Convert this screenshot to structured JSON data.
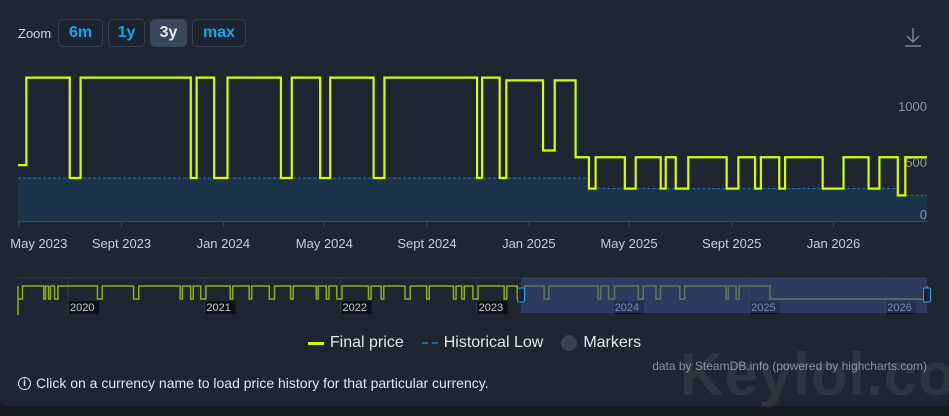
{
  "toolbar": {
    "zoom_label": "Zoom",
    "buttons": [
      {
        "label": "6m",
        "active": false
      },
      {
        "label": "1y",
        "active": false
      },
      {
        "label": "3y",
        "active": true
      },
      {
        "label": "max",
        "active": false
      }
    ],
    "download_icon": "download-icon"
  },
  "colors": {
    "final_price": "#d4ff00",
    "historical_low": "#1a7ac0",
    "low_fill": "#1b3449",
    "navigator_mask": "#3b4a86"
  },
  "chart_data": {
    "type": "line",
    "step": true,
    "x_ticks": [
      "May 2023",
      "Sept 2023",
      "Jan 2024",
      "May 2024",
      "Sept 2024",
      "Jan 2025",
      "May 2025",
      "Sept 2025",
      "Jan 2026"
    ],
    "x_tick_dates": [
      "2023-05-01",
      "2023-09-01",
      "2024-01-01",
      "2024-05-01",
      "2024-09-01",
      "2025-01-01",
      "2025-05-01",
      "2025-09-01",
      "2026-01-01"
    ],
    "xlim": [
      "2023-04-30",
      "2026-04-23"
    ],
    "y_ticks": [
      0,
      500,
      1000
    ],
    "ylim": [
      0,
      1330
    ],
    "grid": false,
    "legend_position": "bottom",
    "series": [
      {
        "name": "Final price",
        "points": [
          [
            "2023-04-30",
            499
          ],
          [
            "2023-05-10",
            1280
          ],
          [
            "2023-07-01",
            384
          ],
          [
            "2023-07-14",
            1280
          ],
          [
            "2023-11-23",
            384
          ],
          [
            "2023-11-30",
            1280
          ],
          [
            "2023-12-21",
            384
          ],
          [
            "2024-01-06",
            1280
          ],
          [
            "2024-03-10",
            384
          ],
          [
            "2024-03-23",
            1280
          ],
          [
            "2024-04-26",
            384
          ],
          [
            "2024-05-08",
            1280
          ],
          [
            "2024-06-29",
            384
          ],
          [
            "2024-07-12",
            1280
          ],
          [
            "2024-10-31",
            384
          ],
          [
            "2024-11-06",
            1280
          ],
          [
            "2024-11-27",
            384
          ],
          [
            "2024-12-05",
            1255
          ],
          [
            "2025-01-18",
            629
          ],
          [
            "2025-02-01",
            1255
          ],
          [
            "2025-02-26",
            569
          ],
          [
            "2025-03-14",
            289
          ],
          [
            "2025-03-22",
            569
          ],
          [
            "2025-04-26",
            289
          ],
          [
            "2025-05-09",
            569
          ],
          [
            "2025-06-08",
            289
          ],
          [
            "2025-06-14",
            569
          ],
          [
            "2025-06-26",
            289
          ],
          [
            "2025-07-11",
            569
          ],
          [
            "2025-08-26",
            289
          ],
          [
            "2025-09-09",
            569
          ],
          [
            "2025-09-29",
            289
          ],
          [
            "2025-10-06",
            569
          ],
          [
            "2025-10-28",
            289
          ],
          [
            "2025-11-04",
            569
          ],
          [
            "2025-12-19",
            289
          ],
          [
            "2026-01-13",
            569
          ],
          [
            "2026-02-12",
            289
          ],
          [
            "2026-02-25",
            569
          ],
          [
            "2026-03-19",
            229
          ],
          [
            "2026-03-28",
            569
          ],
          [
            "2026-04-23",
            569
          ]
        ]
      },
      {
        "name": "Historical Low",
        "points": [
          [
            "2023-04-30",
            384
          ],
          [
            "2025-03-14",
            289
          ],
          [
            "2026-03-19",
            229
          ],
          [
            "2026-04-23",
            229
          ]
        ]
      }
    ],
    "navigator": {
      "year_labels": [
        "2020",
        "2021",
        "2022",
        "2023",
        "2024",
        "2025",
        "2026"
      ],
      "xlim": [
        "2019-08-20",
        "2026-04-23"
      ],
      "selected_range": [
        "2023-04-30",
        "2026-04-23"
      ],
      "sale_periods": [
        [
          "2019-08-20",
          "2019-09-01"
        ],
        [
          "2019-10-28",
          "2019-11-02"
        ],
        [
          "2019-11-10",
          "2019-11-15"
        ],
        [
          "2019-11-26",
          "2019-12-05"
        ],
        [
          "2020-03-20",
          "2020-04-02"
        ],
        [
          "2020-06-25",
          "2020-07-09"
        ],
        [
          "2020-10-28",
          "2020-11-03"
        ],
        [
          "2020-11-25",
          "2020-12-02"
        ],
        [
          "2020-12-22",
          "2021-01-05"
        ],
        [
          "2021-03-11",
          "2021-03-18"
        ],
        [
          "2021-05-01",
          "2021-05-08"
        ],
        [
          "2021-06-24",
          "2021-07-08"
        ],
        [
          "2021-08-20",
          "2021-08-27"
        ],
        [
          "2021-10-28",
          "2021-11-02"
        ],
        [
          "2021-11-24",
          "2021-12-01"
        ],
        [
          "2021-12-22",
          "2022-01-05"
        ],
        [
          "2022-03-17",
          "2022-03-24"
        ],
        [
          "2022-04-20",
          "2022-04-27"
        ],
        [
          "2022-06-23",
          "2022-07-07"
        ],
        [
          "2022-08-20",
          "2022-08-27"
        ],
        [
          "2022-10-31",
          "2022-11-07"
        ],
        [
          "2022-11-22",
          "2022-11-29"
        ],
        [
          "2022-12-22",
          "2023-01-05"
        ],
        [
          "2023-03-16",
          "2023-03-23"
        ],
        [
          "2023-04-20",
          "2023-05-10"
        ],
        [
          "2023-07-01",
          "2023-07-14"
        ],
        [
          "2023-11-23",
          "2023-11-30"
        ],
        [
          "2023-12-21",
          "2024-01-06"
        ],
        [
          "2024-03-10",
          "2024-03-23"
        ],
        [
          "2024-04-26",
          "2024-05-08"
        ],
        [
          "2024-06-29",
          "2024-07-12"
        ],
        [
          "2024-10-31",
          "2024-11-06"
        ],
        [
          "2024-11-27",
          "2024-12-05"
        ],
        [
          "2025-02-26",
          "2026-04-23"
        ]
      ]
    }
  },
  "legend": {
    "final_price": "Final price",
    "historical_low": "Historical Low",
    "markers": "Markers"
  },
  "credits": "data by SteamDB.info (powered by highcharts.com)",
  "info_text": "Click on a currency name to load price history for that particular currency.",
  "watermark": "Keylol.com"
}
